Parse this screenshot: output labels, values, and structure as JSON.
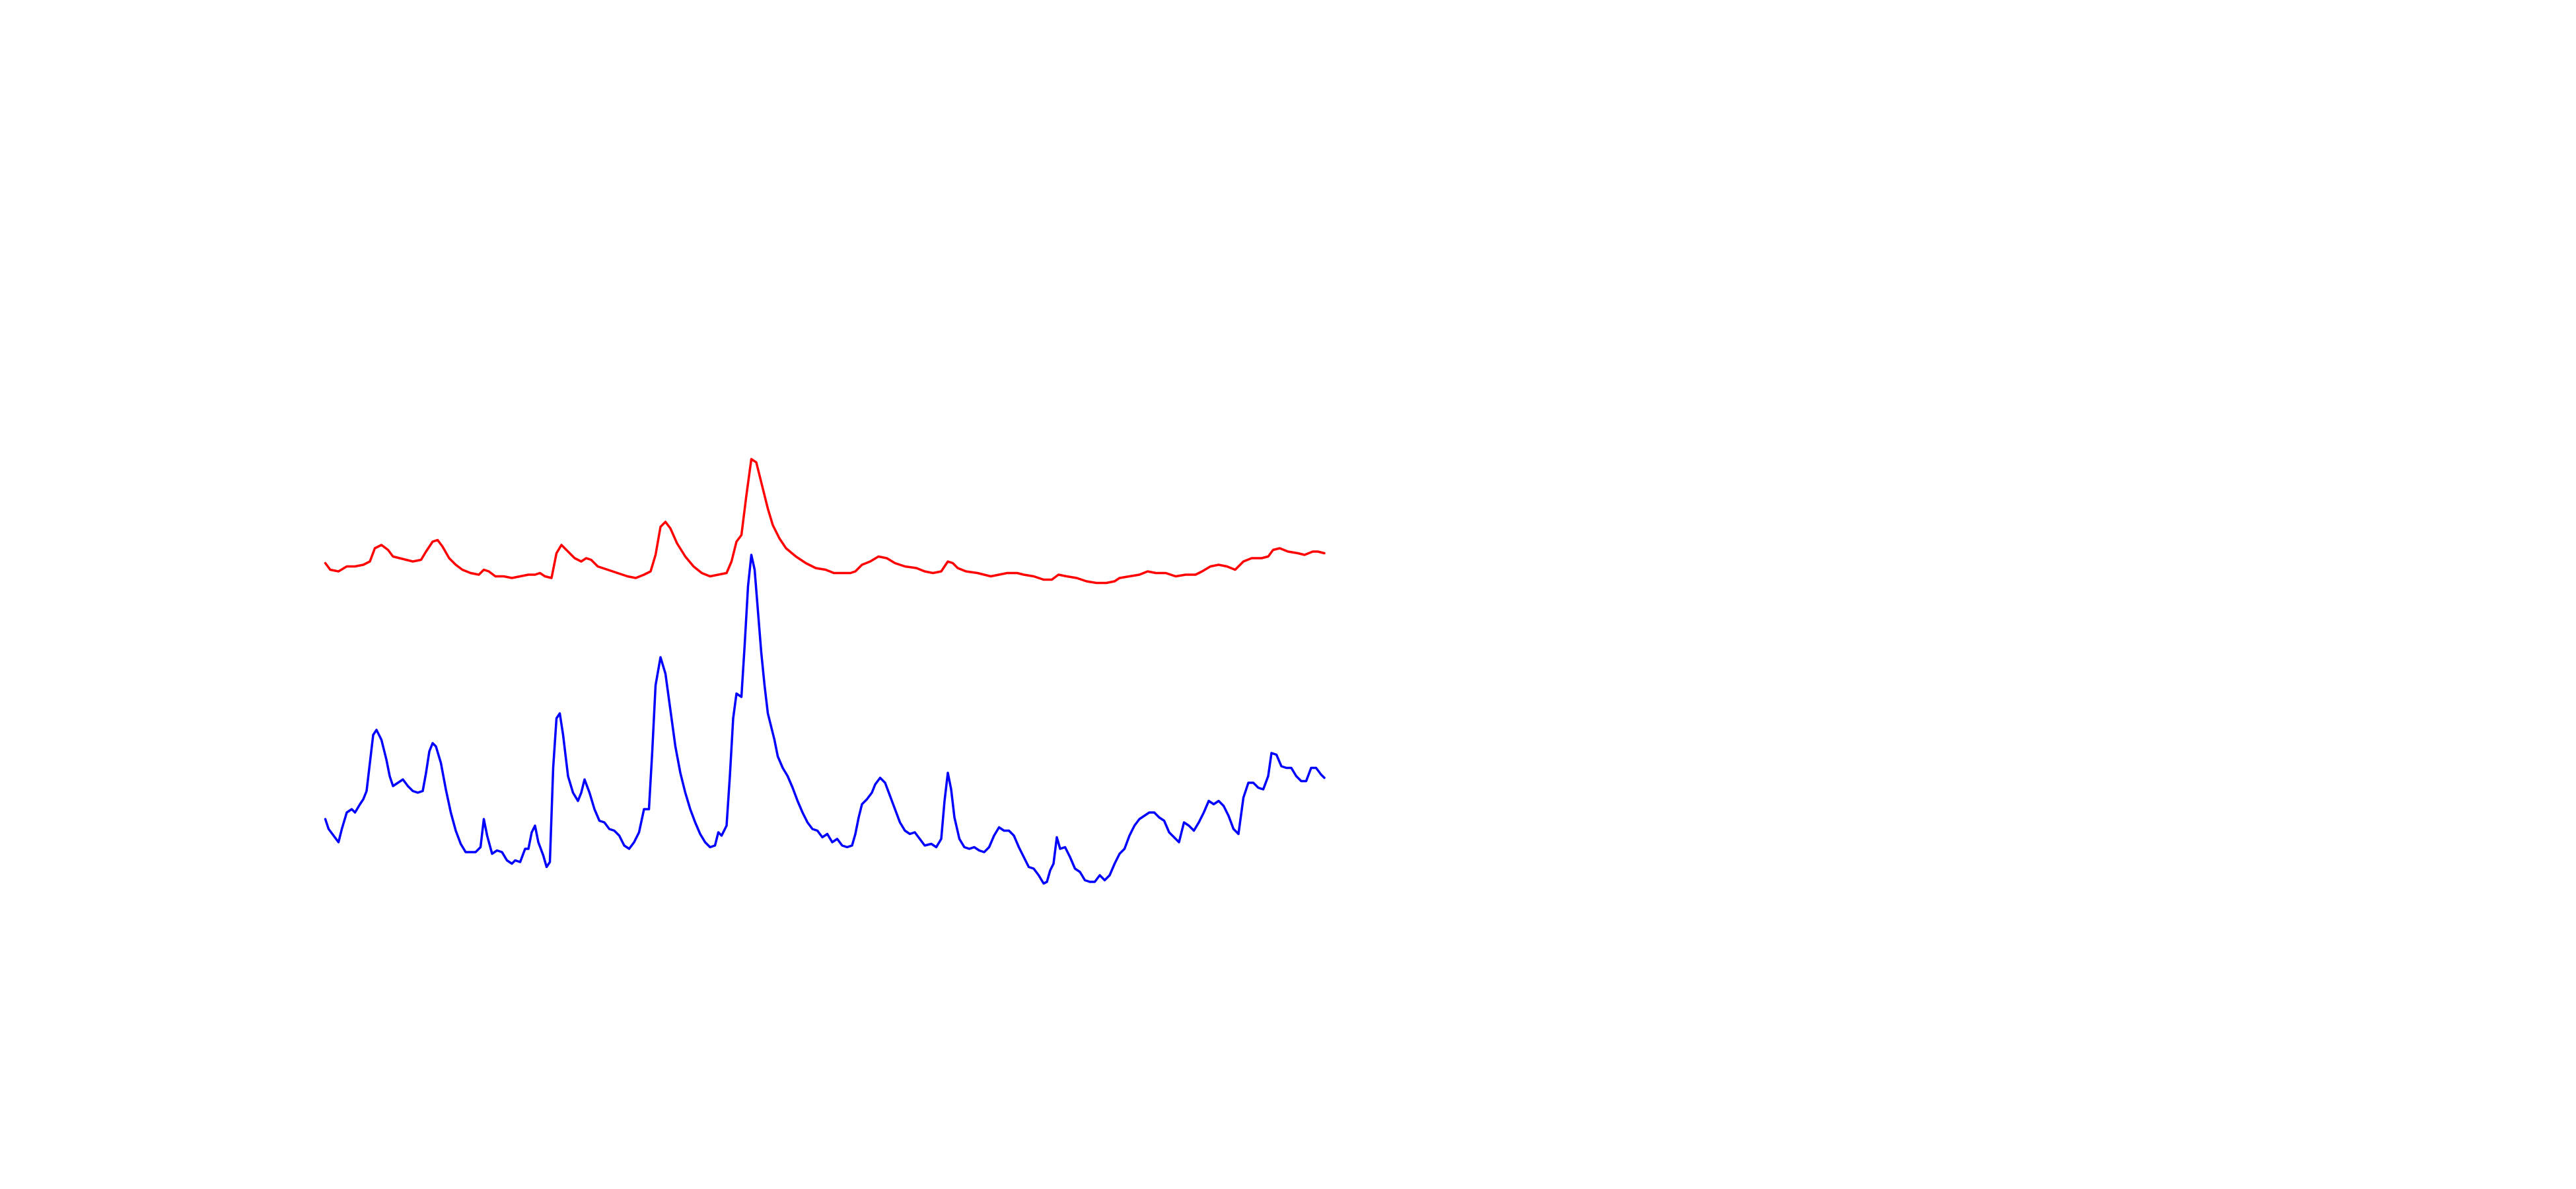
{
  "chart_data": {
    "type": "line",
    "xlim": [
      197,
      802
    ],
    "ylim": [
      0,
      300
    ],
    "series": [
      {
        "color": "#ff0000",
        "x": [
          197,
          200,
          205,
          210,
          215,
          220,
          224,
          227,
          231,
          235,
          238,
          242,
          246,
          250,
          255,
          258,
          262,
          265,
          268,
          272,
          276,
          280,
          285,
          290,
          293,
          296,
          300,
          305,
          310,
          315,
          320,
          324,
          327,
          330,
          334,
          337,
          340,
          344,
          348,
          352,
          355,
          358,
          362,
          368,
          374,
          380,
          385,
          390,
          394,
          397,
          400,
          403,
          406,
          410,
          415,
          420,
          425,
          430,
          435,
          440,
          443,
          446,
          449,
          452,
          455,
          458,
          461,
          465,
          468,
          472,
          476,
          482,
          488,
          494,
          500,
          505,
          510,
          515,
          518,
          522,
          527,
          532,
          537,
          542,
          548,
          555,
          560,
          565,
          570,
          574,
          577,
          580,
          585,
          592,
          600,
          605,
          610,
          616,
          620,
          626,
          632,
          637,
          641,
          646,
          652,
          658,
          664,
          670,
          675,
          678,
          684,
          690,
          695,
          700,
          706,
          712,
          718,
          724,
          728,
          733,
          738,
          743,
          748,
          753,
          758,
          764,
          768,
          771,
          775,
          780,
          786,
          790,
          795,
          798,
          802
        ],
        "values": [
          219,
          215,
          214,
          217,
          217,
          218,
          220,
          228,
          230,
          227,
          223,
          222,
          221,
          220,
          221,
          226,
          232,
          233,
          229,
          222,
          218,
          215,
          213,
          212,
          215,
          214,
          211,
          211,
          210,
          211,
          212,
          212,
          213,
          211,
          210,
          225,
          230,
          226,
          222,
          220,
          222,
          221,
          217,
          215,
          213,
          211,
          210,
          212,
          214,
          224,
          241,
          244,
          240,
          231,
          223,
          217,
          213,
          211,
          212,
          213,
          220,
          232,
          236,
          260,
          282,
          280,
          268,
          252,
          242,
          234,
          228,
          223,
          219,
          216,
          215,
          213,
          213,
          213,
          214,
          218,
          220,
          223,
          222,
          219,
          217,
          216,
          214,
          213,
          214,
          220,
          219,
          216,
          214,
          213,
          211,
          212,
          213,
          213,
          212,
          211,
          209,
          209,
          212,
          211,
          210,
          208,
          207,
          207,
          208,
          210,
          211,
          212,
          214,
          213,
          213,
          211,
          212,
          212,
          214,
          217,
          218,
          217,
          215,
          220,
          222,
          222,
          223,
          227,
          228,
          226,
          225,
          224,
          226,
          226,
          225
        ]
      },
      {
        "color": "#0000ff",
        "x": [
          197,
          199,
          202,
          205,
          207,
          210,
          213,
          215,
          218,
          220,
          222,
          224,
          226,
          228,
          231,
          234,
          236,
          238,
          241,
          244,
          247,
          250,
          253,
          256,
          258,
          260,
          262,
          264,
          267,
          270,
          273,
          276,
          279,
          282,
          285,
          288,
          291,
          293,
          295,
          298,
          301,
          304,
          307,
          310,
          312,
          315,
          318,
          320,
          322,
          324,
          326,
          329,
          331,
          333,
          335,
          337,
          339,
          341,
          344,
          347,
          350,
          352,
          354,
          357,
          360,
          363,
          366,
          369,
          372,
          375,
          378,
          381,
          384,
          387,
          390,
          393,
          395,
          397,
          400,
          403,
          406,
          409,
          412,
          415,
          418,
          421,
          424,
          427,
          430,
          433,
          435,
          437,
          440,
          442,
          444,
          446,
          449,
          451,
          453,
          455,
          457,
          459,
          461,
          463,
          465,
          467,
          469,
          471,
          474,
          477,
          480,
          483,
          486,
          489,
          492,
          495,
          498,
          501,
          504,
          507,
          510,
          513,
          516,
          518,
          520,
          522,
          525,
          528,
          530,
          533,
          536,
          539,
          542,
          545,
          548,
          551,
          554,
          557,
          560,
          564,
          567,
          570,
          572,
          574,
          576,
          578,
          581,
          584,
          587,
          590,
          593,
          596,
          599,
          602,
          605,
          608,
          611,
          614,
          617,
          620,
          623,
          626,
          629,
          632,
          634,
          636,
          638,
          640,
          642,
          645,
          648,
          651,
          654,
          657,
          660,
          663,
          666,
          669,
          672,
          675,
          678,
          681,
          684,
          687,
          690,
          693,
          696,
          699,
          702,
          705,
          708,
          711,
          714,
          717,
          720,
          723,
          726,
          729,
          732,
          735,
          738,
          741,
          744,
          747,
          750,
          753,
          756,
          759,
          762,
          765,
          768,
          770,
          773,
          776,
          779,
          782,
          785,
          788,
          791,
          794,
          797,
          800,
          802
        ],
        "values": [
          64,
          58,
          54,
          50,
          58,
          68,
          70,
          68,
          73,
          76,
          81,
          98,
          115,
          118,
          112,
          100,
          90,
          84,
          86,
          88,
          84,
          81,
          80,
          81,
          92,
          105,
          110,
          108,
          98,
          82,
          68,
          57,
          49,
          44,
          44,
          44,
          47,
          64,
          54,
          43,
          45,
          44,
          39,
          37,
          39,
          38,
          46,
          46,
          56,
          60,
          50,
          42,
          35,
          38,
          95,
          125,
          128,
          115,
          90,
          80,
          75,
          80,
          88,
          80,
          70,
          63,
          62,
          58,
          57,
          54,
          48,
          46,
          50,
          56,
          70,
          70,
          105,
          145,
          162,
          152,
          130,
          108,
          92,
          80,
          70,
          62,
          55,
          50,
          47,
          48,
          56,
          54,
          60,
          90,
          125,
          140,
          138,
          170,
          205,
          224,
          215,
          190,
          165,
          145,
          128,
          120,
          112,
          102,
          95,
          90,
          83,
          75,
          68,
          62,
          58,
          57,
          53,
          55,
          50,
          52,
          48,
          47,
          48,
          55,
          65,
          73,
          76,
          80,
          85,
          89,
          86,
          78,
          70,
          62,
          57,
          55,
          56,
          52,
          48,
          49,
          47,
          52,
          75,
          92,
          82,
          65,
          52,
          47,
          46,
          47,
          45,
          44,
          47,
          54,
          59,
          57,
          57,
          54,
          47,
          41,
          35,
          34,
          30,
          25,
          26,
          33,
          37,
          53,
          46,
          47,
          41,
          34,
          32,
          27,
          26,
          26,
          30,
          27,
          30,
          37,
          43,
          46,
          54,
          60,
          64,
          66,
          68,
          68,
          65,
          63,
          56,
          53,
          50,
          62,
          60,
          57,
          62,
          68,
          75,
          73,
          75,
          72,
          66,
          58,
          55,
          77,
          86,
          86,
          83,
          82,
          90,
          104,
          103,
          96,
          95,
          95,
          90,
          87,
          87,
          95,
          95,
          91,
          89
        ]
      }
    ]
  }
}
